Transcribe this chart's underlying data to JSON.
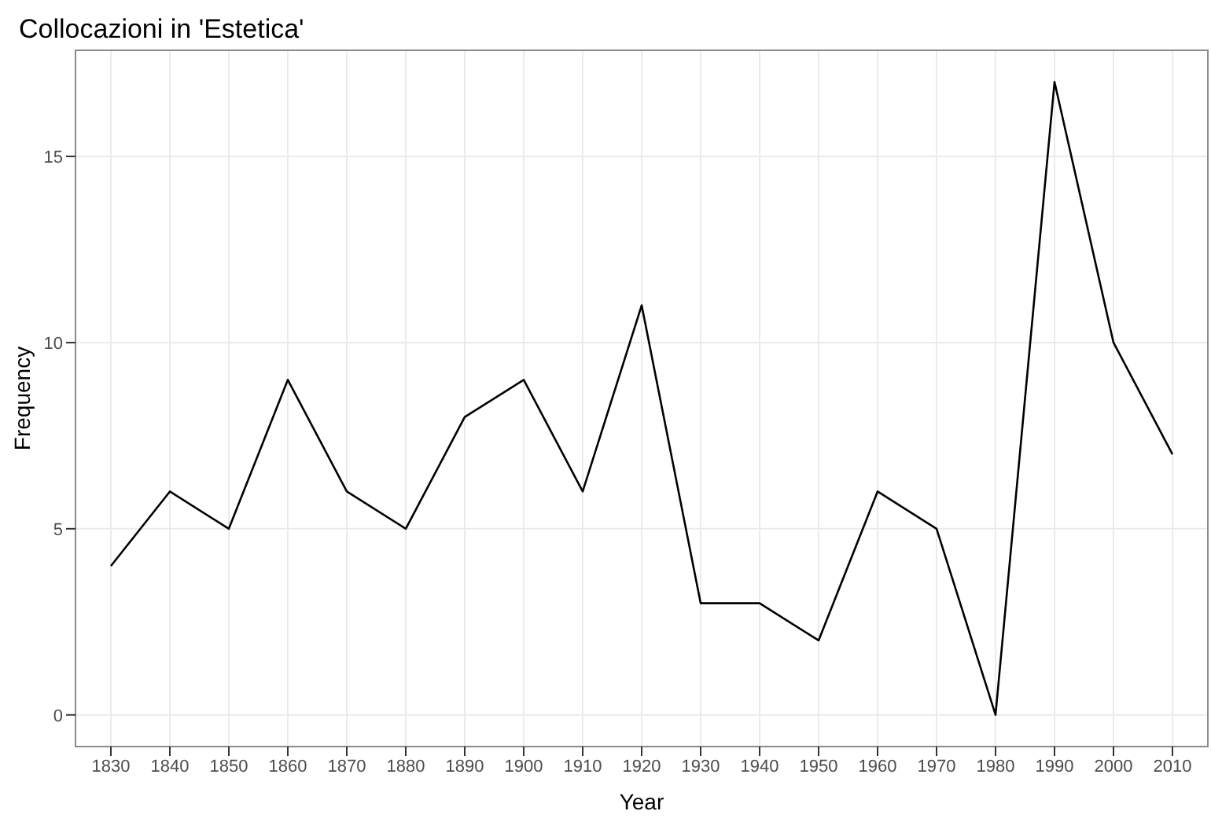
{
  "chart_data": {
    "type": "line",
    "title": "Collocazioni in 'Estetica'",
    "xlabel": "Year",
    "ylabel": "Frequency",
    "categories": [
      "1830",
      "1840",
      "1850",
      "1860",
      "1870",
      "1880",
      "1890",
      "1900",
      "1910",
      "1920",
      "1930",
      "1940",
      "1950",
      "1960",
      "1970",
      "1980",
      "1990",
      "2000",
      "2010"
    ],
    "series": [
      {
        "color": "#000000",
        "values": [
          4,
          6,
          5,
          9,
          6,
          5,
          8,
          9,
          6,
          11,
          3,
          3,
          2,
          6,
          5,
          0,
          17,
          10,
          7
        ]
      }
    ],
    "ylim": [
      -0.85,
      17.85
    ],
    "yticks": [
      0,
      5,
      10,
      15
    ],
    "grid": true,
    "marker": "none",
    "line_style": "solid"
  }
}
